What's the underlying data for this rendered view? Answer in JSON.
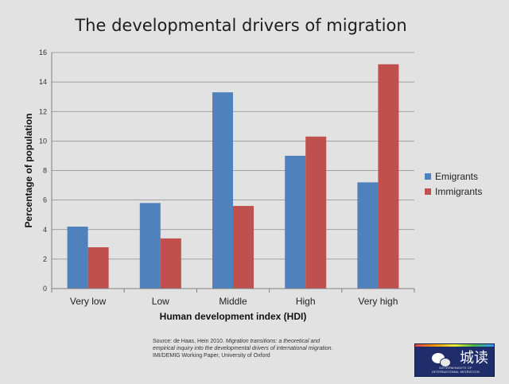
{
  "chart_data": {
    "type": "bar",
    "title": "The developmental drivers of migration",
    "xlabel": "Human development index (HDI)",
    "ylabel": "Percentage of population",
    "categories": [
      "Very low",
      "Low",
      "Middle",
      "High",
      "Very high"
    ],
    "series": [
      {
        "name": "Emigrants",
        "values": [
          4.2,
          5.8,
          13.3,
          9.0,
          7.2
        ],
        "color": "#4f81bd"
      },
      {
        "name": "Immigrants",
        "values": [
          2.8,
          3.4,
          5.6,
          10.3,
          15.2
        ],
        "color": "#c0504d"
      }
    ],
    "ylim": [
      0,
      16
    ],
    "yticks": [
      0,
      2,
      4,
      6,
      8,
      10,
      12,
      14,
      16
    ],
    "grid": true,
    "legend": "right"
  },
  "source": {
    "prefix": "Source: de Haas, Hein 2010. ",
    "title_italic": "Migration transitions: a theoretical and empirical inquiry into the developmental drivers of international migration",
    "suffix": ". IMI/DEMIG Working Paper, University of Oxford"
  },
  "logo": {
    "chinese": "城读",
    "line1": "DETERMINANTS OF",
    "line2": "INTERNATIONAL MIGRATION"
  }
}
